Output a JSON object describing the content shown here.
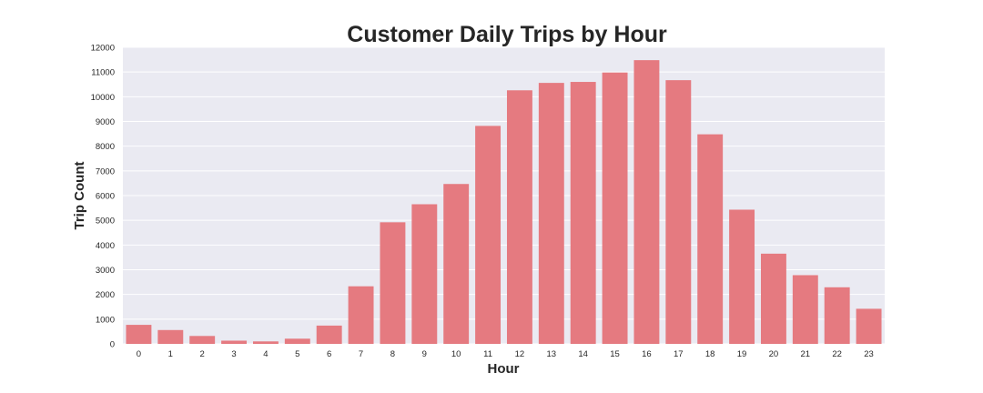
{
  "chart_data": {
    "type": "bar",
    "title": "Customer Daily Trips by Hour",
    "xlabel": "Hour",
    "ylabel": "Trip Count",
    "categories": [
      "0",
      "1",
      "2",
      "3",
      "4",
      "5",
      "6",
      "7",
      "8",
      "9",
      "10",
      "11",
      "12",
      "13",
      "14",
      "15",
      "16",
      "17",
      "18",
      "19",
      "20",
      "21",
      "22",
      "23"
    ],
    "values": [
      770,
      560,
      320,
      130,
      100,
      210,
      740,
      2330,
      4920,
      5650,
      6470,
      8820,
      10260,
      10560,
      10600,
      10980,
      11480,
      10670,
      8480,
      5430,
      3650,
      2780,
      2290,
      1420
    ],
    "ylim": [
      0,
      12000
    ],
    "yticks": [
      0,
      1000,
      2000,
      3000,
      4000,
      5000,
      6000,
      7000,
      8000,
      9000,
      10000,
      11000,
      12000
    ],
    "grid": true,
    "colors": {
      "bar": "#e57a80",
      "plot_background": "#eaeaf2",
      "grid": "#ffffff"
    }
  }
}
